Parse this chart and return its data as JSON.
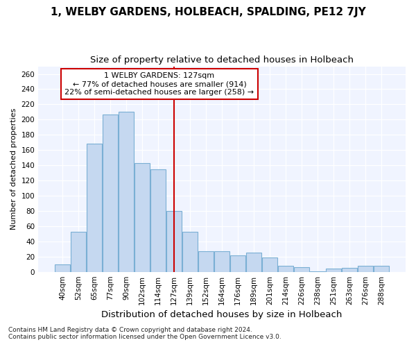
{
  "title": "1, WELBY GARDENS, HOLBEACH, SPALDING, PE12 7JY",
  "subtitle": "Size of property relative to detached houses in Holbeach",
  "xlabel": "Distribution of detached houses by size in Holbeach",
  "ylabel": "Number of detached properties",
  "categories": [
    "40sqm",
    "52sqm",
    "65sqm",
    "77sqm",
    "90sqm",
    "102sqm",
    "114sqm",
    "127sqm",
    "139sqm",
    "152sqm",
    "164sqm",
    "176sqm",
    "189sqm",
    "201sqm",
    "214sqm",
    "226sqm",
    "238sqm",
    "251sqm",
    "263sqm",
    "276sqm",
    "288sqm"
  ],
  "values": [
    10,
    53,
    168,
    207,
    210,
    143,
    135,
    80,
    53,
    27,
    27,
    22,
    25,
    19,
    8,
    6,
    1,
    4,
    5,
    8,
    8
  ],
  "bar_color": "#c5d8f0",
  "bar_edge_color": "#7aafd4",
  "highlight_index": 7,
  "highlight_line_color": "#cc0000",
  "annotation_line1": "1 WELBY GARDENS: 127sqm",
  "annotation_line2": "← 77% of detached houses are smaller (914)",
  "annotation_line3": "22% of semi-detached houses are larger (258) →",
  "annotation_box_color": "#ffffff",
  "annotation_box_edge_color": "#cc0000",
  "ylim": [
    0,
    270
  ],
  "yticks": [
    0,
    20,
    40,
    60,
    80,
    100,
    120,
    140,
    160,
    180,
    200,
    220,
    240,
    260
  ],
  "footer_line1": "Contains HM Land Registry data © Crown copyright and database right 2024.",
  "footer_line2": "Contains public sector information licensed under the Open Government Licence v3.0.",
  "bg_color": "#ffffff",
  "plot_bg_color": "#f0f4ff",
  "title_fontsize": 11,
  "subtitle_fontsize": 9.5,
  "xlabel_fontsize": 9.5,
  "ylabel_fontsize": 8,
  "tick_fontsize": 7.5,
  "annotation_fontsize": 8,
  "footer_fontsize": 6.5
}
